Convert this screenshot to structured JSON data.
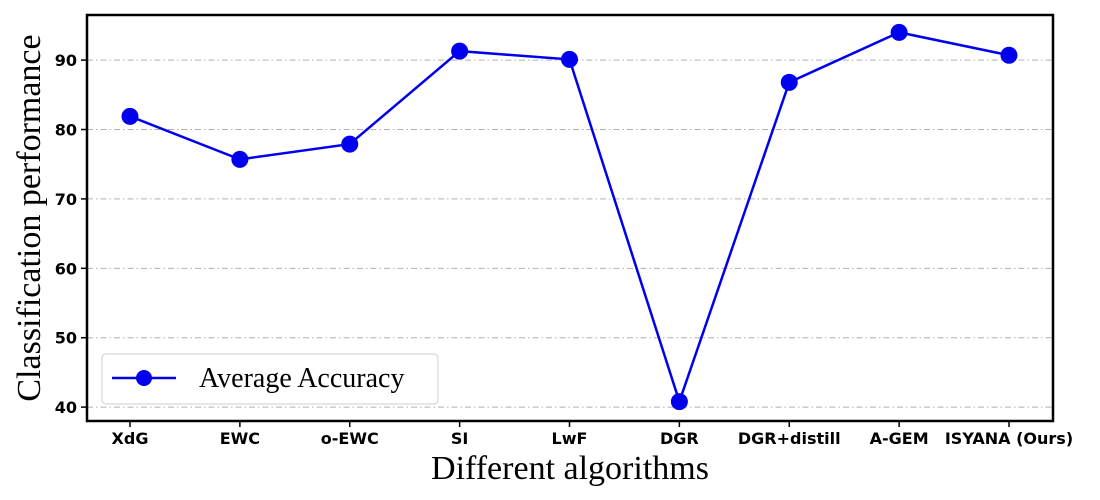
{
  "chart_data": {
    "type": "line",
    "title": "",
    "xlabel": "Different algorithms",
    "ylabel": "Classification performance",
    "categories": [
      "XdG",
      "EWC",
      "o-EWC",
      "SI",
      "LwF",
      "DGR",
      "DGR+distill",
      "A-GEM",
      "ISYANA (Ours)"
    ],
    "y_ticks": [
      40,
      50,
      60,
      70,
      80,
      90
    ],
    "ylim": [
      38,
      96.5
    ],
    "grid": "horizontal dash-dot",
    "legend_position": "bottom-left",
    "series": [
      {
        "name": "Average Accuracy",
        "color": "#0000ee",
        "marker": "circle",
        "values": [
          81.9,
          75.7,
          77.9,
          91.3,
          90.1,
          40.8,
          86.8,
          94.0,
          90.7
        ]
      }
    ]
  }
}
